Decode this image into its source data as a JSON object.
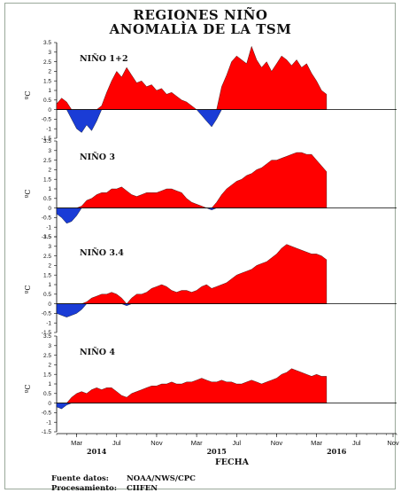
{
  "title_line1": "REGIONES NIÑO",
  "title_line2": "ANOMALÌA DE LA TSM",
  "x_axis_label": "FECHA",
  "source_label": "Fuente datos:",
  "source_value": "NOAA/NWS/CPC",
  "processing_label": "Procesamiento:",
  "processing_value": "CIIFEN",
  "colors": {
    "positive": "#ff0000",
    "negative": "#1a3cd6",
    "axis": "#000000"
  },
  "chart_data": {
    "type": "area",
    "x_axis": {
      "month_ticks": [
        "Mar",
        "Jul",
        "Nov",
        "Mar",
        "Jul",
        "Nov",
        "Mar",
        "Jul",
        "Nov"
      ],
      "year_labels": [
        {
          "label": "2014",
          "month_index": 4
        },
        {
          "label": "2015",
          "month_index": 16
        },
        {
          "label": "2016",
          "month_index": 28
        }
      ],
      "range_months": [
        0,
        34
      ],
      "data_end_month": 27
    },
    "panels": [
      {
        "name": "NIÑO 1+2",
        "ylabel": "ºC",
        "ylim": [
          -1.5,
          3.5
        ],
        "yticks": [
          "3.5",
          "3",
          "2.5",
          "2",
          "1.5",
          "1",
          "0.5",
          "0",
          "-0.5",
          "-1",
          "-1.5"
        ],
        "x": [
          0,
          0.5,
          1,
          1.5,
          2,
          2.5,
          3,
          3.5,
          4,
          4.5,
          5,
          5.5,
          6,
          6.5,
          7,
          7.5,
          8,
          8.5,
          9,
          9.5,
          10,
          10.5,
          11,
          11.5,
          12,
          12.5,
          13,
          13.5,
          14,
          14.5,
          15,
          15.5,
          16,
          16.5,
          17,
          17.5,
          18,
          18.5,
          19,
          19.5,
          20,
          20.5,
          21,
          21.5,
          22,
          22.5,
          23,
          23.5,
          24,
          24.5,
          25,
          25.5,
          26,
          26.5,
          27
        ],
        "values": [
          0.3,
          0.6,
          0.4,
          -0.5,
          -1.0,
          -1.2,
          -0.8,
          -1.1,
          -0.6,
          0.2,
          0.9,
          1.5,
          2.0,
          1.7,
          2.2,
          1.8,
          1.4,
          1.5,
          1.2,
          1.3,
          1.0,
          1.1,
          0.8,
          0.9,
          0.7,
          0.5,
          0.4,
          0.2,
          0.0,
          -0.3,
          -0.6,
          -0.9,
          -0.5,
          1.2,
          1.8,
          2.5,
          2.8,
          2.6,
          2.4,
          3.3,
          2.6,
          2.2,
          2.5,
          2.0,
          2.4,
          2.8,
          2.6,
          2.3,
          2.6,
          2.2,
          2.4,
          1.9,
          1.5,
          1.0,
          0.8
        ]
      },
      {
        "name": "NIÑO 3",
        "ylabel": "ºC",
        "ylim": [
          -1.5,
          3.5
        ],
        "yticks": [
          "3.5",
          "3",
          "2.5",
          "2",
          "1.5",
          "1",
          "0.5",
          "0",
          "-0.5",
          "-1",
          "-1.5"
        ],
        "x": [
          0,
          0.5,
          1,
          1.5,
          2,
          2.5,
          3,
          3.5,
          4,
          4.5,
          5,
          5.5,
          6,
          6.5,
          7,
          7.5,
          8,
          8.5,
          9,
          9.5,
          10,
          10.5,
          11,
          11.5,
          12,
          12.5,
          13,
          13.5,
          14,
          14.5,
          15,
          15.5,
          16,
          16.5,
          17,
          17.5,
          18,
          18.5,
          19,
          19.5,
          20,
          20.5,
          21,
          21.5,
          22,
          22.5,
          23,
          23.5,
          24,
          24.5,
          25,
          25.5,
          26,
          26.5,
          27
        ],
        "values": [
          -0.3,
          -0.5,
          -0.8,
          -0.7,
          -0.4,
          0.1,
          0.4,
          0.5,
          0.7,
          0.8,
          0.8,
          1.0,
          1.0,
          1.1,
          0.9,
          0.7,
          0.6,
          0.7,
          0.8,
          0.8,
          0.8,
          0.9,
          1.0,
          1.0,
          0.9,
          0.8,
          0.5,
          0.3,
          0.2,
          0.1,
          0.0,
          -0.1,
          0.3,
          0.7,
          1.0,
          1.2,
          1.4,
          1.5,
          1.7,
          1.8,
          2.0,
          2.1,
          2.3,
          2.5,
          2.5,
          2.6,
          2.7,
          2.8,
          2.9,
          2.9,
          2.8,
          2.8,
          2.5,
          2.2,
          1.9
        ]
      },
      {
        "name": "NIÑO 3.4",
        "ylabel": "ºC",
        "ylim": [
          -1.5,
          3.5
        ],
        "yticks": [
          "3.5",
          "3",
          "2.5",
          "2",
          "1.5",
          "1",
          "0.5",
          "0",
          "-0.5",
          "-1",
          "-1.5"
        ],
        "x": [
          0,
          0.5,
          1,
          1.5,
          2,
          2.5,
          3,
          3.5,
          4,
          4.5,
          5,
          5.5,
          6,
          6.5,
          7,
          7.5,
          8,
          8.5,
          9,
          9.5,
          10,
          10.5,
          11,
          11.5,
          12,
          12.5,
          13,
          13.5,
          14,
          14.5,
          15,
          15.5,
          16,
          16.5,
          17,
          17.5,
          18,
          18.5,
          19,
          19.5,
          20,
          20.5,
          21,
          21.5,
          22,
          22.5,
          23,
          23.5,
          24,
          24.5,
          25,
          25.5,
          26,
          26.5,
          27
        ],
        "values": [
          -0.5,
          -0.6,
          -0.7,
          -0.6,
          -0.5,
          -0.3,
          0.1,
          0.3,
          0.4,
          0.5,
          0.5,
          0.6,
          0.5,
          0.3,
          -0.1,
          0.3,
          0.5,
          0.5,
          0.6,
          0.8,
          0.9,
          1.0,
          0.9,
          0.7,
          0.6,
          0.7,
          0.7,
          0.6,
          0.7,
          0.9,
          1.0,
          0.8,
          0.9,
          1.0,
          1.1,
          1.3,
          1.5,
          1.6,
          1.7,
          1.8,
          2.0,
          2.1,
          2.2,
          2.4,
          2.6,
          2.9,
          3.1,
          3.0,
          2.9,
          2.8,
          2.7,
          2.6,
          2.6,
          2.5,
          2.3
        ]
      },
      {
        "name": "NIÑO 4",
        "ylabel": "ºC",
        "ylim": [
          -1.5,
          3.5
        ],
        "yticks": [
          "3.5",
          "3",
          "2.5",
          "2",
          "1.5",
          "1",
          "0.5",
          "0",
          "-0.5",
          "-1",
          "-1.5"
        ],
        "x": [
          0,
          0.5,
          1,
          1.5,
          2,
          2.5,
          3,
          3.5,
          4,
          4.5,
          5,
          5.5,
          6,
          6.5,
          7,
          7.5,
          8,
          8.5,
          9,
          9.5,
          10,
          10.5,
          11,
          11.5,
          12,
          12.5,
          13,
          13.5,
          14,
          14.5,
          15,
          15.5,
          16,
          16.5,
          17,
          17.5,
          18,
          18.5,
          19,
          19.5,
          20,
          20.5,
          21,
          21.5,
          22,
          22.5,
          23,
          23.5,
          24,
          24.5,
          25,
          25.5,
          26,
          26.5,
          27
        ],
        "values": [
          -0.2,
          -0.3,
          -0.1,
          0.3,
          0.5,
          0.6,
          0.5,
          0.7,
          0.8,
          0.7,
          0.8,
          0.8,
          0.6,
          0.4,
          0.3,
          0.5,
          0.6,
          0.7,
          0.8,
          0.9,
          0.9,
          1.0,
          1.0,
          1.1,
          1.0,
          1.0,
          1.1,
          1.1,
          1.2,
          1.3,
          1.2,
          1.1,
          1.1,
          1.2,
          1.1,
          1.1,
          1.0,
          1.0,
          1.1,
          1.2,
          1.1,
          1.0,
          1.1,
          1.2,
          1.3,
          1.5,
          1.6,
          1.8,
          1.7,
          1.6,
          1.5,
          1.4,
          1.5,
          1.4,
          1.4
        ]
      }
    ]
  }
}
